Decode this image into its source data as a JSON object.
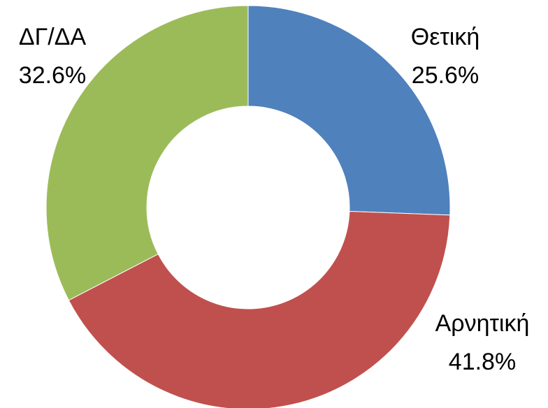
{
  "chart_data": {
    "type": "donut",
    "categories": [
      "Θετική",
      "Αρνητική",
      "ΔΓ/ΔΑ"
    ],
    "values": [
      25.6,
      41.8,
      32.6
    ],
    "value_labels": [
      "25.6%",
      "41.8%",
      "32.6%"
    ],
    "colors": [
      "#4f81bd",
      "#c0504d",
      "#9bbb59"
    ]
  }
}
